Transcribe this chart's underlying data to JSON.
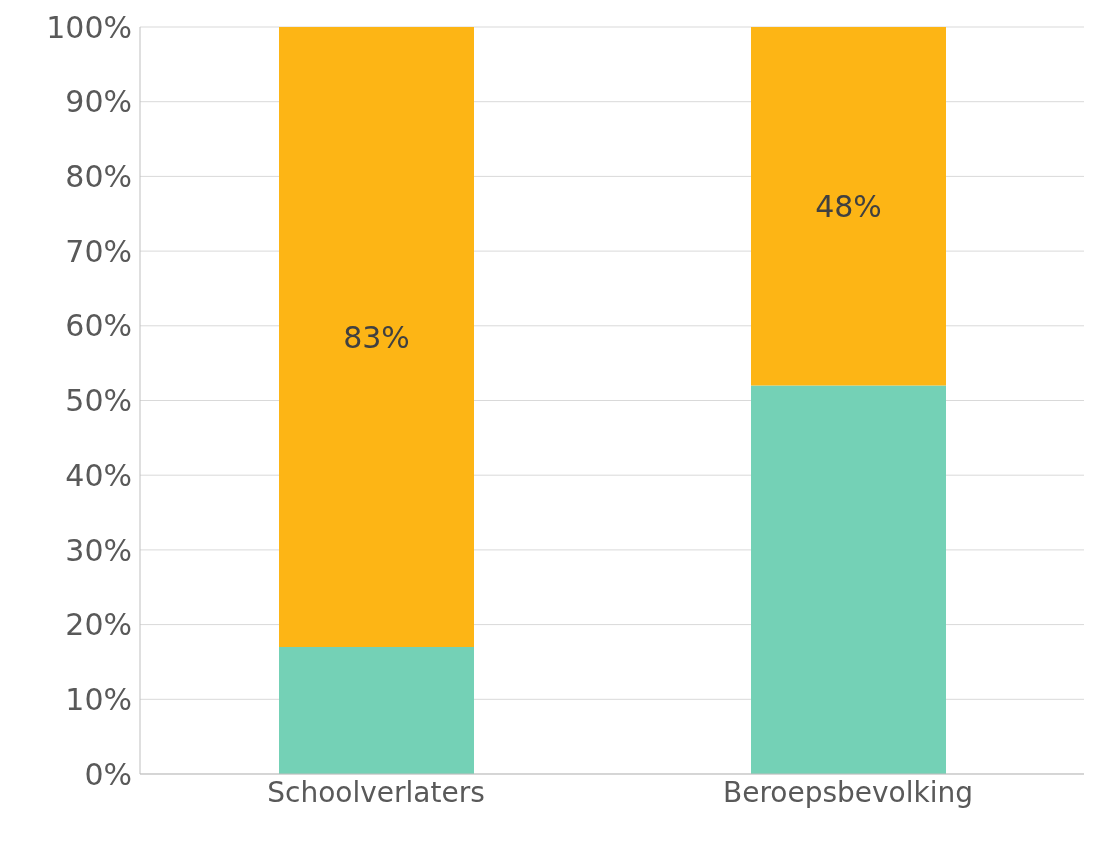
{
  "chart_data": {
    "type": "bar",
    "stacked": true,
    "categories": [
      "Schoolverlaters",
      "Beroepsbevolking"
    ],
    "series": [
      {
        "color": "#74d1b6",
        "values": [
          17,
          52
        ]
      },
      {
        "color": "#fdb515",
        "values": [
          83,
          48
        ],
        "value_labels": [
          "83%",
          "48%"
        ]
      }
    ],
    "ylim": [
      0,
      100
    ],
    "yticks": [
      {
        "value": 0,
        "label": "0%"
      },
      {
        "value": 10,
        "label": "10%"
      },
      {
        "value": 20,
        "label": "20%"
      },
      {
        "value": 30,
        "label": "30%"
      },
      {
        "value": 40,
        "label": "40%"
      },
      {
        "value": 50,
        "label": "50%"
      },
      {
        "value": 60,
        "label": "60%"
      },
      {
        "value": 70,
        "label": "70%"
      },
      {
        "value": 80,
        "label": "80%"
      },
      {
        "value": 90,
        "label": "90%"
      },
      {
        "value": 100,
        "label": "100%"
      }
    ],
    "grid": "y",
    "legend": false
  }
}
